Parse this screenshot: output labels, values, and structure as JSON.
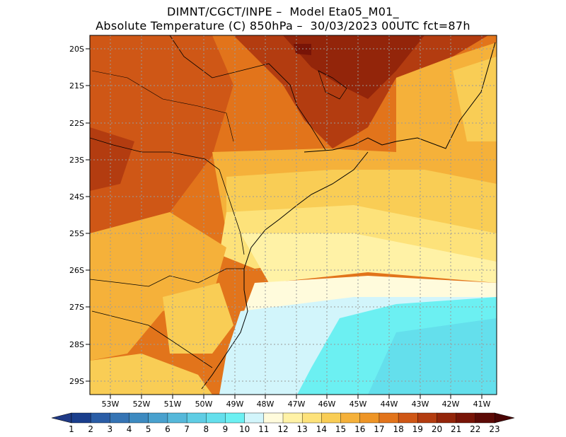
{
  "title": {
    "line1": "DIMNT/CGCT/INPE –  Model Eta05_M01_",
    "line2": "Absolute Temperature (C) 850hPa –  30/03/2023 00UTC fct=87h"
  },
  "map": {
    "lat_labels": [
      "20S",
      "21S",
      "22S",
      "23S",
      "24S",
      "25S",
      "26S",
      "27S",
      "28S",
      "29S"
    ],
    "lon_labels": [
      "53W",
      "52W",
      "51W",
      "50W",
      "49W",
      "48W",
      "47W",
      "46W",
      "45W",
      "44W",
      "43W",
      "42W",
      "41W"
    ]
  },
  "colorbar": {
    "labels": [
      "1",
      "2",
      "3",
      "4",
      "5",
      "6",
      "7",
      "8",
      "9",
      "10",
      "11",
      "12",
      "13",
      "14",
      "15",
      "16",
      "17",
      "18",
      "19",
      "20",
      "21",
      "22",
      "23"
    ],
    "colors": [
      "#1a3e8c",
      "#2a5da6",
      "#3574b4",
      "#3d8ac0",
      "#49a1ce",
      "#55b8da",
      "#5fcde4",
      "#64dfec",
      "#6cf0f2",
      "#d2f5fb",
      "#fffbdc",
      "#fff2a6",
      "#fde27a",
      "#f9cd55",
      "#f5b13a",
      "#ee9526",
      "#e2741b",
      "#cf5716",
      "#b33c10",
      "#93250a",
      "#781407",
      "#5c0a06"
    ],
    "left_arrow_color": "#1f3a86",
    "right_arrow_color": "#4a0505"
  }
}
